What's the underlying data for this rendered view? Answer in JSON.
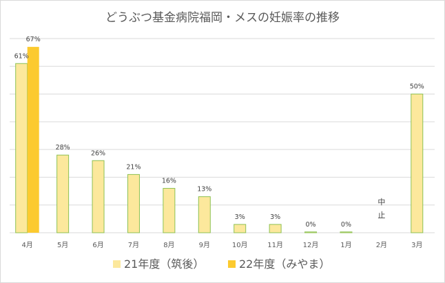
{
  "chart_data": {
    "type": "bar",
    "title": "どうぶつ基金病院福岡・メスの妊娠率の推移",
    "categories": [
      "4月",
      "5月",
      "6月",
      "7月",
      "8月",
      "9月",
      "10月",
      "11月",
      "12月",
      "1月",
      "2月",
      "3月"
    ],
    "series": [
      {
        "name": "21年度（筑後）",
        "color": "#fce89c",
        "border": "#8cc152",
        "values": [
          61,
          28,
          26,
          21,
          16,
          13,
          3,
          3,
          0,
          0,
          null,
          50
        ],
        "labels": [
          "61%",
          "28%",
          "26%",
          "21%",
          "16%",
          "13%",
          "3%",
          "3%",
          "0%",
          "0%",
          "",
          "50%"
        ]
      },
      {
        "name": "22年度（みやま）",
        "color": "#fcca2f",
        "values": [
          67,
          null,
          null,
          null,
          null,
          null,
          null,
          null,
          null,
          null,
          null,
          null
        ],
        "labels": [
          "67%",
          "",
          "",
          "",
          "",
          "",
          "",
          "",
          "",
          "",
          "",
          ""
        ]
      }
    ],
    "annotations": [
      {
        "category": "2月",
        "text": "中止"
      }
    ],
    "ylim": [
      0,
      70
    ],
    "grid": true,
    "legend": "bottom"
  }
}
